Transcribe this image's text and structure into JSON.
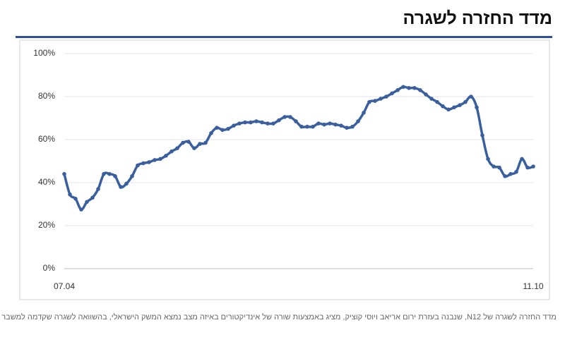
{
  "chart_data": {
    "type": "line",
    "title": "מדד החזרה לשגרה",
    "caption": "מדד החזרה לשגרה של N12, שנבנה בעזרת ירום אריאב ויוסי קוציק, מציג באמצעות שורה של אינדיקטורים באיזה מצב נמצא המשק הישראלי, בהשוואה לשגרה שקדמה למשבר הקורונה",
    "categories": [
      "07.04",
      null,
      null,
      null,
      null,
      null,
      null,
      null,
      null,
      null,
      null,
      null,
      null,
      null,
      null,
      null,
      null,
      null,
      null,
      null,
      null,
      null,
      null,
      null,
      null,
      null,
      null,
      null,
      null,
      null,
      null,
      null,
      null,
      null,
      null,
      null,
      null,
      null,
      null,
      null,
      null,
      null,
      null,
      null,
      null,
      null,
      null,
      null,
      null,
      null,
      null,
      null,
      null,
      null,
      null,
      null,
      null,
      null,
      null,
      null,
      null,
      null,
      null,
      null,
      null,
      null,
      null,
      null,
      null,
      null,
      null,
      null,
      null,
      null,
      null,
      null,
      null,
      null,
      null,
      null,
      null,
      null,
      null,
      "11.10"
    ],
    "values": [
      44,
      34.5,
      32.5,
      27.5,
      31,
      33,
      37,
      44,
      44,
      43,
      38,
      39.5,
      43,
      48,
      49,
      49.5,
      50.5,
      51,
      52.5,
      54.5,
      56,
      58.5,
      59,
      56,
      58,
      58.5,
      63,
      65.5,
      64.5,
      65,
      66.5,
      67.5,
      68,
      68,
      68.5,
      68,
      67.5,
      67.5,
      69,
      70.5,
      70.5,
      68.5,
      66,
      66,
      66,
      67.5,
      67,
      67.5,
      67,
      66.5,
      65.5,
      66,
      68.5,
      72.5,
      77.5,
      78,
      79,
      80,
      81.5,
      83,
      84.5,
      84,
      84,
      83,
      81,
      79,
      77.5,
      75.5,
      74,
      75,
      76,
      77.5,
      80,
      75,
      62,
      51,
      47.5,
      47,
      43,
      44,
      45,
      51,
      47,
      47.5
    ],
    "color": "#3a5f9e",
    "ylim": [
      0,
      100
    ],
    "yticks": [
      {
        "value": 0,
        "label": "0%"
      },
      {
        "value": 20,
        "label": "20%"
      },
      {
        "value": 40,
        "label": "40%"
      },
      {
        "value": 60,
        "label": "60%"
      },
      {
        "value": 80,
        "label": "80%"
      },
      {
        "value": 100,
        "label": "100%"
      }
    ],
    "grid": true
  }
}
